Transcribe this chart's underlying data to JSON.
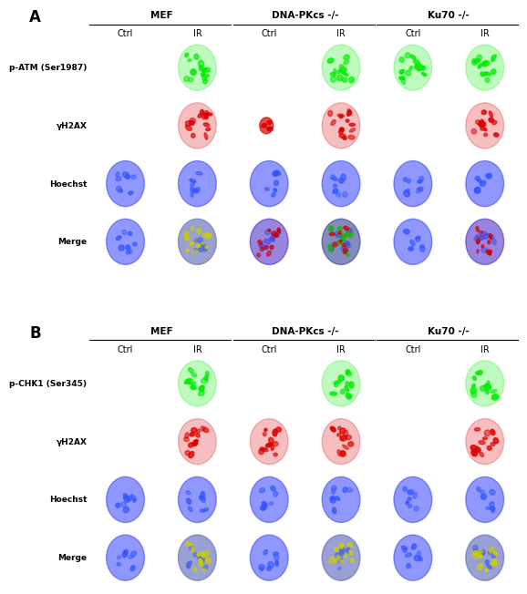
{
  "panel_A_label": "A",
  "panel_B_label": "B",
  "group_labels": [
    "MEF",
    "DNA-PKcs -/-",
    "Ku70 -/-"
  ],
  "col_labels": [
    "Ctrl",
    "IR",
    "Ctrl",
    "IR",
    "Ctrl",
    "IR"
  ],
  "row_labels_A": [
    "p-ATM (Ser1987)",
    "γH2AX",
    "Hoechst",
    "Merge"
  ],
  "row_labels_B": [
    "p-CHK1 (Ser345)",
    "γH2AX",
    "Hoechst",
    "Merge"
  ],
  "background_color": "#ffffff",
  "cell_bg": "#000000",
  "green_color": "#00cc00",
  "red_color": "#cc0000",
  "blue_color": "#0000dd",
  "yellow_color": "#cccc00"
}
